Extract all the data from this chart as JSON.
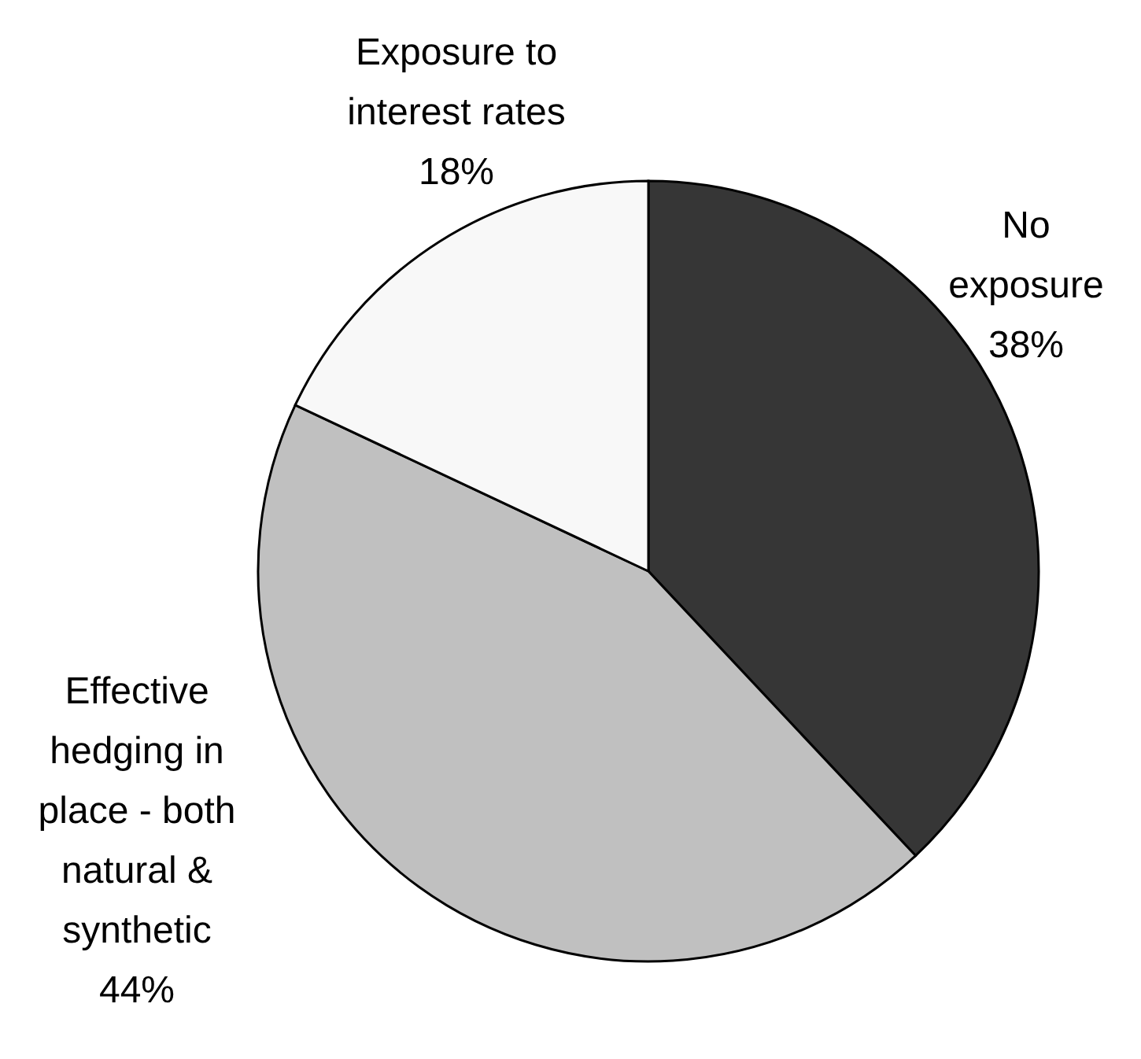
{
  "chart_data": {
    "type": "pie",
    "categories": [
      "No exposure",
      "Effective hedging in place - both natural & synthetic",
      "Exposure to interest rates"
    ],
    "values": [
      38,
      44,
      18
    ],
    "colors": [
      "#363636",
      "#c0c0c0",
      "#f8f8f8"
    ],
    "value_labels": [
      "38%",
      "44%",
      "18%"
    ]
  }
}
